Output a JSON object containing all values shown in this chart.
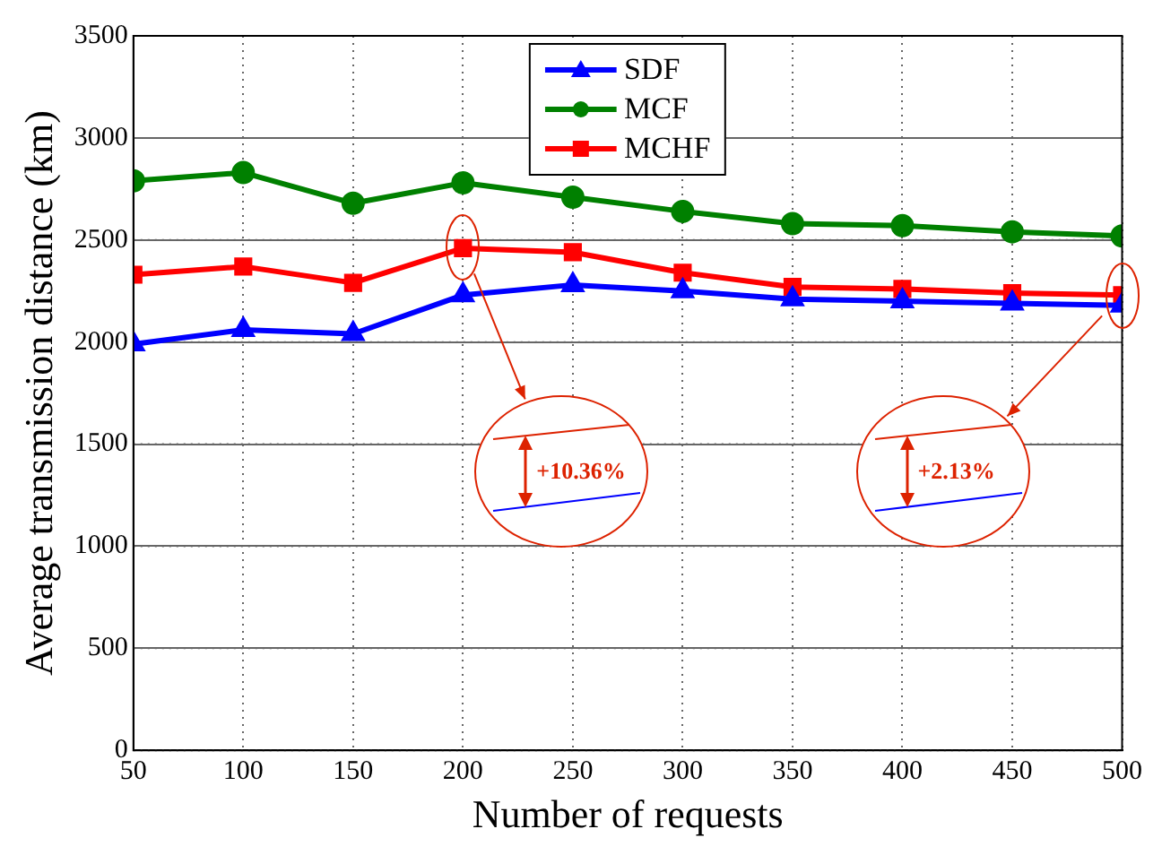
{
  "chart_data": {
    "type": "line",
    "xlabel": "Number of requests",
    "ylabel": "Average transmission distance (km)",
    "x": [
      50,
      100,
      150,
      200,
      250,
      300,
      350,
      400,
      450,
      500
    ],
    "series": [
      {
        "name": "SDF",
        "color": "#0000ff",
        "marker": "triangle",
        "values": [
          1990,
          2060,
          2040,
          2230,
          2280,
          2250,
          2210,
          2200,
          2190,
          2180
        ]
      },
      {
        "name": "MCF",
        "color": "#008000",
        "marker": "circle",
        "values": [
          2790,
          2830,
          2680,
          2780,
          2710,
          2640,
          2580,
          2570,
          2540,
          2520
        ]
      },
      {
        "name": "MCHF",
        "color": "#ff0000",
        "marker": "square",
        "values": [
          2330,
          2370,
          2290,
          2460,
          2440,
          2340,
          2270,
          2260,
          2240,
          2230
        ]
      }
    ],
    "xlim": [
      50,
      500
    ],
    "xticks": [
      50,
      100,
      150,
      200,
      250,
      300,
      350,
      400,
      450,
      500
    ],
    "ylim": [
      0,
      3500
    ],
    "yticks": [
      0,
      500,
      1000,
      1500,
      2000,
      2500,
      3000,
      3500
    ],
    "grid": true,
    "legend": "top",
    "line_style": "solid",
    "annotations": [
      "+10.36%",
      "+2.13%"
    ]
  }
}
